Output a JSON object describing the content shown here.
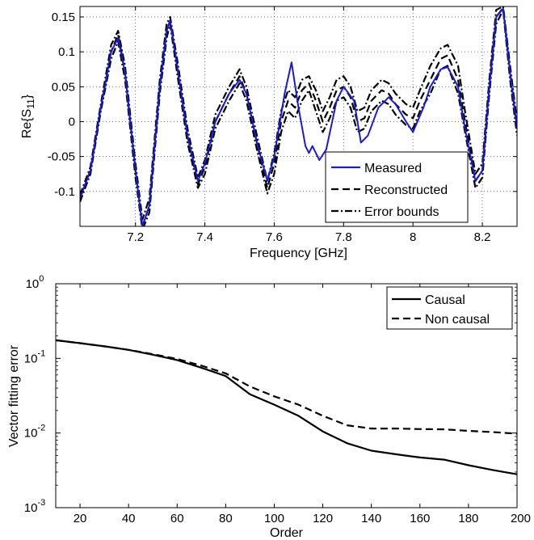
{
  "chart_data": [
    {
      "type": "line",
      "xlabel": "Frequency [GHz]",
      "ylabel": "Re{S",
      "ylabel_sub": "11",
      "ylabel_suffix": "}",
      "xlim": [
        7.04,
        8.3
      ],
      "ylim": [
        -0.15,
        0.165
      ],
      "xticks": [
        7.2,
        7.4,
        7.6,
        7.8,
        8.0,
        8.2
      ],
      "xtick_labels": [
        "7.2",
        "7.4",
        "7.6",
        "7.8",
        "8",
        "8.2"
      ],
      "yticks": [
        -0.1,
        -0.05,
        0,
        0.05,
        0.1,
        0.15
      ],
      "ytick_labels": [
        "-0.1",
        "-0.05",
        "0",
        "0.05",
        "0.1",
        "0.15"
      ],
      "grid": true,
      "legend_position": "bottom-right",
      "colors": {
        "measured": "#1a1adb",
        "other": "#000000"
      },
      "series": [
        {
          "name": "Measured",
          "style": "solid",
          "x": [
            7.04,
            7.07,
            7.1,
            7.13,
            7.15,
            7.17,
            7.2,
            7.22,
            7.24,
            7.27,
            7.29,
            7.3,
            7.32,
            7.35,
            7.38,
            7.4,
            7.43,
            7.47,
            7.5,
            7.52,
            7.55,
            7.58,
            7.6,
            7.63,
            7.65,
            7.67,
            7.69,
            7.7,
            7.71,
            7.73,
            7.75,
            7.78,
            7.8,
            7.83,
            7.85,
            7.87,
            7.9,
            7.93,
            7.95,
            7.98,
            8.0,
            8.03,
            8.05,
            8.08,
            8.1,
            8.13,
            8.15,
            8.18,
            8.2,
            8.22,
            8.24,
            8.26,
            8.28,
            8.3
          ],
          "y": [
            -0.11,
            -0.07,
            0.02,
            0.1,
            0.12,
            0.07,
            -0.07,
            -0.15,
            -0.12,
            0.05,
            0.13,
            0.145,
            0.08,
            -0.02,
            -0.085,
            -0.06,
            0.0,
            0.04,
            0.06,
            0.04,
            -0.03,
            -0.085,
            -0.05,
            0.04,
            0.085,
            0.02,
            -0.035,
            -0.045,
            -0.035,
            -0.055,
            -0.04,
            0.03,
            0.05,
            0.03,
            -0.03,
            -0.02,
            0.02,
            0.035,
            0.025,
            0.0,
            -0.015,
            0.02,
            0.05,
            0.075,
            0.078,
            0.05,
            -0.01,
            -0.085,
            -0.07,
            0.05,
            0.15,
            0.162,
            0.07,
            -0.01
          ]
        },
        {
          "name": "Reconstructed",
          "style": "dashed",
          "x": [
            7.04,
            7.07,
            7.1,
            7.13,
            7.15,
            7.17,
            7.2,
            7.22,
            7.24,
            7.27,
            7.29,
            7.3,
            7.32,
            7.35,
            7.38,
            7.4,
            7.43,
            7.47,
            7.5,
            7.52,
            7.55,
            7.58,
            7.6,
            7.62,
            7.64,
            7.66,
            7.68,
            7.7,
            7.72,
            7.74,
            7.76,
            7.78,
            7.8,
            7.82,
            7.84,
            7.86,
            7.88,
            7.91,
            7.93,
            7.95,
            7.98,
            8.0,
            8.02,
            8.05,
            8.08,
            8.1,
            8.13,
            8.15,
            8.18,
            8.2,
            8.22,
            8.24,
            8.26,
            8.28,
            8.3
          ],
          "y": [
            -0.11,
            -0.07,
            0.02,
            0.1,
            0.125,
            0.07,
            -0.07,
            -0.15,
            -0.12,
            0.05,
            0.13,
            0.145,
            0.08,
            -0.02,
            -0.09,
            -0.065,
            0.0,
            0.04,
            0.065,
            0.04,
            -0.03,
            -0.095,
            -0.06,
            0.0,
            0.03,
            0.02,
            0.045,
            0.055,
            0.03,
            0.0,
            0.02,
            0.045,
            0.05,
            0.035,
            0.0,
            0.005,
            0.03,
            0.045,
            0.04,
            0.025,
            0.01,
            0.005,
            0.03,
            0.06,
            0.09,
            0.095,
            0.06,
            0.0,
            -0.085,
            -0.07,
            0.05,
            0.15,
            0.163,
            0.07,
            -0.01
          ]
        },
        {
          "name": "Error bounds",
          "style": "dashdot",
          "x": [
            7.04,
            7.07,
            7.1,
            7.13,
            7.15,
            7.17,
            7.2,
            7.22,
            7.24,
            7.27,
            7.29,
            7.3,
            7.32,
            7.35,
            7.38,
            7.4,
            7.43,
            7.47,
            7.5,
            7.52,
            7.55,
            7.58,
            7.6,
            7.62,
            7.64,
            7.66,
            7.68,
            7.7,
            7.72,
            7.74,
            7.76,
            7.78,
            7.8,
            7.82,
            7.84,
            7.86,
            7.88,
            7.91,
            7.93,
            7.95,
            7.98,
            8.0,
            8.02,
            8.05,
            8.08,
            8.1,
            8.13,
            8.15,
            8.18,
            8.2,
            8.22,
            8.24,
            8.26,
            8.28,
            8.3
          ],
          "y": [
            -0.105,
            -0.065,
            0.025,
            0.11,
            0.13,
            0.08,
            -0.06,
            -0.14,
            -0.11,
            0.06,
            0.14,
            0.15,
            0.09,
            -0.01,
            -0.08,
            -0.055,
            0.01,
            0.05,
            0.075,
            0.05,
            -0.02,
            -0.085,
            -0.045,
            0.015,
            0.045,
            0.035,
            0.06,
            0.065,
            0.045,
            0.015,
            0.035,
            0.06,
            0.065,
            0.05,
            0.015,
            0.02,
            0.045,
            0.06,
            0.055,
            0.04,
            0.025,
            0.02,
            0.045,
            0.08,
            0.105,
            0.11,
            0.08,
            0.015,
            -0.075,
            -0.06,
            0.06,
            0.16,
            0.165,
            0.08,
            0.0
          ]
        },
        {
          "name": "",
          "style": "dashdot",
          "x": [
            7.04,
            7.07,
            7.1,
            7.13,
            7.15,
            7.17,
            7.2,
            7.22,
            7.24,
            7.27,
            7.29,
            7.3,
            7.32,
            7.35,
            7.38,
            7.4,
            7.43,
            7.47,
            7.5,
            7.52,
            7.55,
            7.58,
            7.6,
            7.62,
            7.64,
            7.66,
            7.68,
            7.7,
            7.72,
            7.74,
            7.76,
            7.78,
            7.8,
            7.82,
            7.84,
            7.86,
            7.88,
            7.91,
            7.93,
            7.95,
            7.98,
            8.0,
            8.02,
            8.05,
            8.08,
            8.1,
            8.13,
            8.15,
            8.18,
            8.2,
            8.22,
            8.24,
            8.26,
            8.28,
            8.3
          ],
          "y": [
            -0.115,
            -0.075,
            0.015,
            0.09,
            0.115,
            0.06,
            -0.08,
            -0.155,
            -0.13,
            0.04,
            0.12,
            0.14,
            0.07,
            -0.03,
            -0.095,
            -0.075,
            -0.01,
            0.03,
            0.055,
            0.03,
            -0.04,
            -0.103,
            -0.075,
            -0.015,
            0.015,
            0.005,
            0.03,
            0.045,
            0.015,
            -0.015,
            0.005,
            0.03,
            0.035,
            0.02,
            -0.015,
            -0.01,
            0.015,
            0.03,
            0.025,
            0.01,
            -0.005,
            -0.01,
            0.015,
            0.04,
            0.075,
            0.08,
            0.04,
            -0.015,
            -0.095,
            -0.08,
            0.04,
            0.14,
            0.16,
            0.06,
            -0.02
          ]
        }
      ]
    },
    {
      "type": "line",
      "xlabel": "Order",
      "ylabel": "Vector fitting error",
      "xlim": [
        10,
        200
      ],
      "ylim": [
        0.001,
        1
      ],
      "yscale": "log",
      "xticks": [
        20,
        40,
        60,
        80,
        100,
        120,
        140,
        160,
        180,
        200
      ],
      "xtick_labels": [
        "20",
        "40",
        "60",
        "80",
        "100",
        "120",
        "140",
        "160",
        "180",
        "200"
      ],
      "yticks": [
        0.001,
        0.01,
        0.1,
        1
      ],
      "ytick_labels": [
        {
          "base": "10",
          "exp": "-3"
        },
        {
          "base": "10",
          "exp": "-2"
        },
        {
          "base": "10",
          "exp": "-1"
        },
        {
          "base": "10",
          "exp": "0"
        }
      ],
      "grid": false,
      "legend_position": "top-right",
      "series": [
        {
          "name": "Causal",
          "style": "solid",
          "x": [
            10,
            20,
            30,
            40,
            50,
            60,
            70,
            80,
            90,
            100,
            110,
            120,
            130,
            140,
            150,
            160,
            170,
            180,
            190,
            200
          ],
          "y": [
            0.175,
            0.16,
            0.145,
            0.13,
            0.112,
            0.095,
            0.075,
            0.058,
            0.033,
            0.024,
            0.017,
            0.0105,
            0.0073,
            0.0058,
            0.0052,
            0.0047,
            0.0044,
            0.0037,
            0.0032,
            0.0028
          ]
        },
        {
          "name": "Non causal",
          "style": "dashed",
          "x": [
            10,
            20,
            30,
            40,
            50,
            60,
            70,
            80,
            90,
            100,
            110,
            120,
            130,
            140,
            150,
            160,
            170,
            180,
            190,
            200
          ],
          "y": [
            0.175,
            0.16,
            0.145,
            0.13,
            0.114,
            0.098,
            0.08,
            0.063,
            0.042,
            0.031,
            0.024,
            0.017,
            0.0127,
            0.0115,
            0.0115,
            0.0113,
            0.0112,
            0.0107,
            0.0103,
            0.0098
          ]
        }
      ]
    }
  ]
}
